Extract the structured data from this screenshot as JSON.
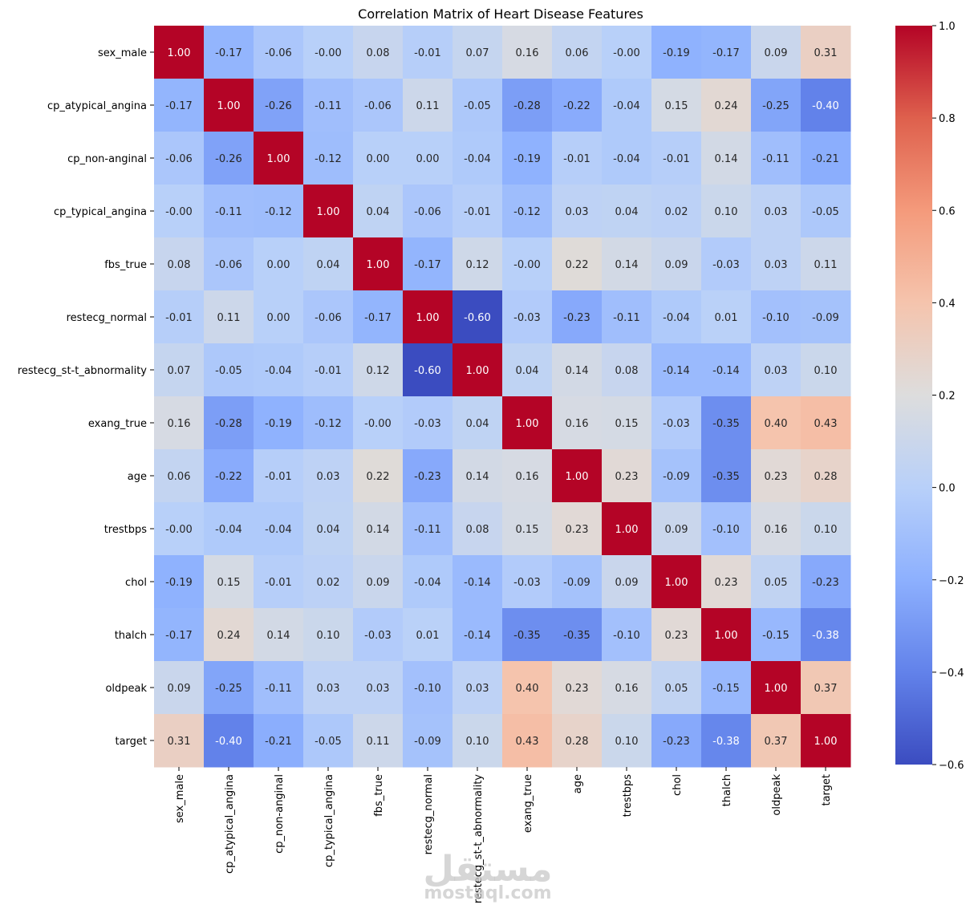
{
  "chart_data": {
    "type": "heatmap",
    "title": "Correlation Matrix of Heart Disease Features",
    "labels": [
      "sex_male",
      "cp_atypical_angina",
      "cp_non-anginal",
      "cp_typical_angina",
      "fbs_true",
      "restecg_normal",
      "restecg_st-t_abnormality",
      "exang_true",
      "age",
      "trestbps",
      "chol",
      "thalch",
      "oldpeak",
      "target"
    ],
    "values": [
      [
        1.0,
        -0.17,
        -0.06,
        -0.0,
        0.08,
        -0.01,
        0.07,
        0.16,
        0.06,
        -0.0,
        -0.19,
        -0.17,
        0.09,
        0.31
      ],
      [
        -0.17,
        1.0,
        -0.26,
        -0.11,
        -0.06,
        0.11,
        -0.05,
        -0.28,
        -0.22,
        -0.04,
        0.15,
        0.24,
        -0.25,
        -0.4
      ],
      [
        -0.06,
        -0.26,
        1.0,
        -0.12,
        0.0,
        0.0,
        -0.04,
        -0.19,
        -0.01,
        -0.04,
        -0.01,
        0.14,
        -0.11,
        -0.21
      ],
      [
        -0.0,
        -0.11,
        -0.12,
        1.0,
        0.04,
        -0.06,
        -0.01,
        -0.12,
        0.03,
        0.04,
        0.02,
        0.1,
        0.03,
        -0.05
      ],
      [
        0.08,
        -0.06,
        0.0,
        0.04,
        1.0,
        -0.17,
        0.12,
        -0.0,
        0.22,
        0.14,
        0.09,
        -0.03,
        0.03,
        0.11
      ],
      [
        -0.01,
        0.11,
        0.0,
        -0.06,
        -0.17,
        1.0,
        -0.6,
        -0.03,
        -0.23,
        -0.11,
        -0.04,
        0.01,
        -0.1,
        -0.09
      ],
      [
        0.07,
        -0.05,
        -0.04,
        -0.01,
        0.12,
        -0.6,
        1.0,
        0.04,
        0.14,
        0.08,
        -0.14,
        -0.14,
        0.03,
        0.1
      ],
      [
        0.16,
        -0.28,
        -0.19,
        -0.12,
        -0.0,
        -0.03,
        0.04,
        1.0,
        0.16,
        0.15,
        -0.03,
        -0.35,
        0.4,
        0.43
      ],
      [
        0.06,
        -0.22,
        -0.01,
        0.03,
        0.22,
        -0.23,
        0.14,
        0.16,
        1.0,
        0.23,
        -0.09,
        -0.35,
        0.23,
        0.28
      ],
      [
        -0.0,
        -0.04,
        -0.04,
        0.04,
        0.14,
        -0.11,
        0.08,
        0.15,
        0.23,
        1.0,
        0.09,
        -0.1,
        0.16,
        0.1
      ],
      [
        -0.19,
        0.15,
        -0.01,
        0.02,
        0.09,
        -0.04,
        -0.14,
        -0.03,
        -0.09,
        0.09,
        1.0,
        0.23,
        0.05,
        -0.23
      ],
      [
        -0.17,
        0.24,
        0.14,
        0.1,
        -0.03,
        0.01,
        -0.14,
        -0.35,
        -0.35,
        -0.1,
        0.23,
        1.0,
        -0.15,
        -0.38
      ],
      [
        0.09,
        -0.25,
        -0.11,
        0.03,
        0.03,
        -0.1,
        0.03,
        0.4,
        0.23,
        0.16,
        0.05,
        -0.15,
        1.0,
        0.37
      ],
      [
        0.31,
        -0.4,
        -0.21,
        -0.05,
        0.11,
        -0.09,
        0.1,
        0.43,
        0.28,
        0.1,
        -0.23,
        -0.38,
        0.37,
        1.0
      ]
    ],
    "vmin": -0.6,
    "vmax": 1.0,
    "colormap": "coolwarm",
    "colorbar_ticks": [
      "1.0",
      "0.8",
      "0.6",
      "0.4",
      "0.2",
      "0.0",
      "−0.2",
      "−0.4",
      "−0.6"
    ],
    "colorbar_tick_values": [
      1.0,
      0.8,
      0.6,
      0.4,
      0.2,
      0.0,
      -0.2,
      -0.4,
      -0.6
    ],
    "annotations_format": "2 decimals"
  },
  "watermark": {
    "arabic": "مستقل",
    "latin": "mostaql.com"
  }
}
